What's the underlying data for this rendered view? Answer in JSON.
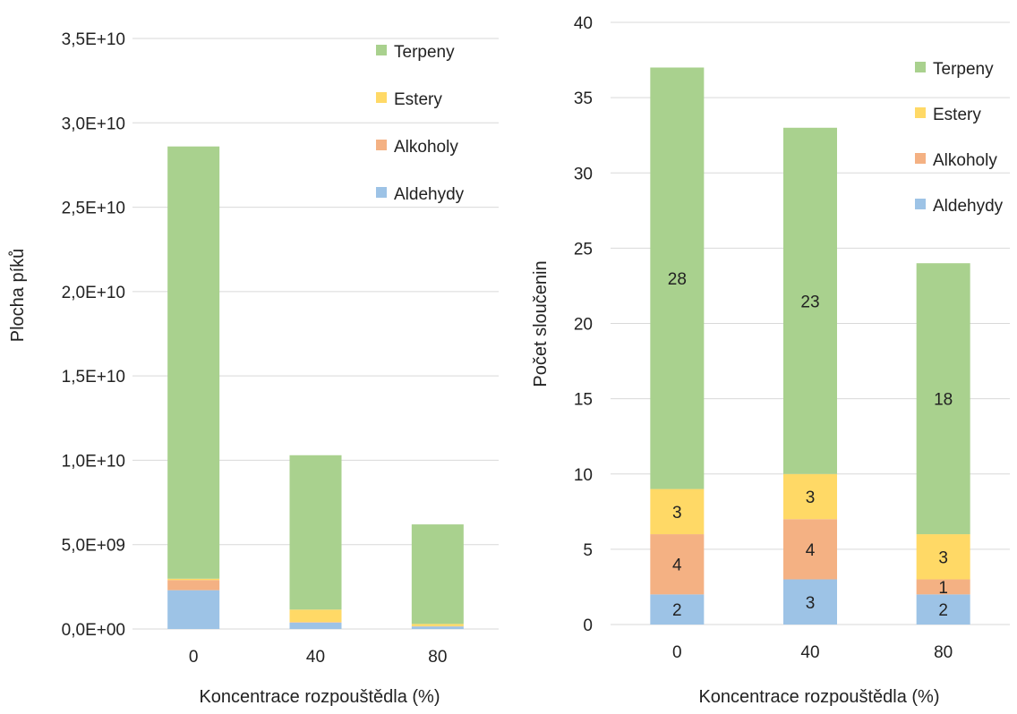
{
  "chart_data": [
    {
      "type": "bar",
      "stacked": true,
      "categories": [
        "0",
        "40",
        "80"
      ],
      "series": [
        {
          "name": "Aldehydy",
          "color": "#9dc3e6",
          "values": [
            2300000000,
            380000000,
            150000000
          ]
        },
        {
          "name": "Alkoholy",
          "color": "#f4b183",
          "values": [
            600000000,
            30000000,
            20000000
          ]
        },
        {
          "name": "Estery",
          "color": "#ffd966",
          "values": [
            80000000,
            740000000,
            130000000
          ]
        },
        {
          "name": "Terpeny",
          "color": "#a9d18e",
          "values": [
            25620000000,
            9150000000,
            5900000000
          ]
        }
      ],
      "xlabel": "Koncentrace rozpouštědla (%)",
      "ylabel": "Plocha píků",
      "ylim": [
        0,
        35000000000
      ],
      "yticks": [
        "0,0E+00",
        "5,0E+09",
        "1,0E+10",
        "1,5E+10",
        "2,0E+10",
        "2,5E+10",
        "3,0E+10",
        "3,5E+10"
      ],
      "legend_position": "top-right",
      "legend_order": [
        "Terpeny",
        "Estery",
        "Alkoholy",
        "Aldehydy"
      ],
      "grid": "horizontal",
      "data_labels": false
    },
    {
      "type": "bar",
      "stacked": true,
      "categories": [
        "0",
        "40",
        "80"
      ],
      "series": [
        {
          "name": "Aldehydy",
          "color": "#9dc3e6",
          "values": [
            2,
            3,
            2
          ]
        },
        {
          "name": "Alkoholy",
          "color": "#f4b183",
          "values": [
            4,
            4,
            1
          ]
        },
        {
          "name": "Estery",
          "color": "#ffd966",
          "values": [
            3,
            3,
            3
          ]
        },
        {
          "name": "Terpeny",
          "color": "#a9d18e",
          "values": [
            28,
            23,
            18
          ]
        }
      ],
      "xlabel": "Koncentrace rozpouštědla (%)",
      "ylabel": "Počet sloučenin",
      "ylim": [
        0,
        40
      ],
      "yticks": [
        "0",
        "5",
        "10",
        "15",
        "20",
        "25",
        "30",
        "35",
        "40"
      ],
      "legend_position": "top-right",
      "legend_order": [
        "Terpeny",
        "Estery",
        "Alkoholy",
        "Aldehydy"
      ],
      "grid": "horizontal",
      "data_labels": true
    }
  ]
}
